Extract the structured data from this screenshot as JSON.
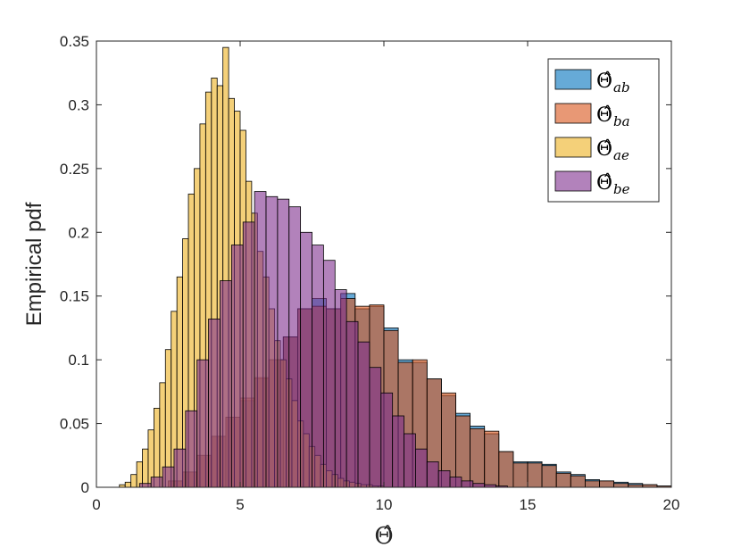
{
  "chart_data": {
    "type": "bar",
    "xlabel": "Θ̂",
    "ylabel": "Empirical pdf",
    "xlim": [
      0,
      20
    ],
    "ylim": [
      0,
      0.35
    ],
    "xticks": [
      0,
      5,
      10,
      15,
      20
    ],
    "xtick_labels": [
      "0",
      "5",
      "10",
      "15",
      "20"
    ],
    "yticks": [
      0,
      0.05,
      0.1,
      0.15,
      0.2,
      0.25,
      0.3,
      0.35
    ],
    "ytick_labels": [
      "0",
      "0.05",
      "0.1",
      "0.15",
      "0.2",
      "0.25",
      "0.3",
      "0.35"
    ],
    "grid": false,
    "legend_position": "top-right",
    "series": [
      {
        "name_base": "Θ̂",
        "name_sub": "ab",
        "color": "#0072BD",
        "binwidth": 0.5,
        "bins": [
          [
            2.5,
            0.005
          ],
          [
            3.0,
            0.012
          ],
          [
            3.5,
            0.025
          ],
          [
            4.0,
            0.04
          ],
          [
            4.5,
            0.055
          ],
          [
            5.0,
            0.068
          ],
          [
            5.5,
            0.085
          ],
          [
            6.0,
            0.1
          ],
          [
            6.5,
            0.118
          ],
          [
            7.0,
            0.14
          ],
          [
            7.5,
            0.148
          ],
          [
            8.0,
            0.14
          ],
          [
            8.5,
            0.152
          ],
          [
            9.0,
            0.14
          ],
          [
            9.5,
            0.142
          ],
          [
            10.0,
            0.125
          ],
          [
            10.5,
            0.1
          ],
          [
            11.0,
            0.098
          ],
          [
            11.5,
            0.085
          ],
          [
            12.0,
            0.072
          ],
          [
            12.5,
            0.058
          ],
          [
            13.0,
            0.048
          ],
          [
            13.5,
            0.042
          ],
          [
            14.0,
            0.028
          ],
          [
            14.5,
            0.02
          ],
          [
            15.0,
            0.02
          ],
          [
            15.5,
            0.018
          ],
          [
            16.0,
            0.012
          ],
          [
            16.5,
            0.01
          ],
          [
            17.0,
            0.006
          ],
          [
            17.5,
            0.005
          ],
          [
            18.0,
            0.004
          ],
          [
            18.5,
            0.003
          ],
          [
            19.0,
            0.002
          ],
          [
            19.5,
            0.001
          ]
        ]
      },
      {
        "name_base": "Θ̂",
        "name_sub": "ba",
        "color": "#D95319",
        "binwidth": 0.5,
        "bins": [
          [
            2.5,
            0.005
          ],
          [
            3.0,
            0.012
          ],
          [
            3.5,
            0.025
          ],
          [
            4.0,
            0.04
          ],
          [
            4.5,
            0.055
          ],
          [
            5.0,
            0.07
          ],
          [
            5.5,
            0.086
          ],
          [
            6.0,
            0.1
          ],
          [
            6.5,
            0.118
          ],
          [
            7.0,
            0.14
          ],
          [
            7.5,
            0.142
          ],
          [
            8.0,
            0.14
          ],
          [
            8.5,
            0.148
          ],
          [
            9.0,
            0.142
          ],
          [
            9.5,
            0.143
          ],
          [
            10.0,
            0.123
          ],
          [
            10.5,
            0.098
          ],
          [
            11.0,
            0.1
          ],
          [
            11.5,
            0.085
          ],
          [
            12.0,
            0.074
          ],
          [
            12.5,
            0.056
          ],
          [
            13.0,
            0.046
          ],
          [
            13.5,
            0.044
          ],
          [
            14.0,
            0.028
          ],
          [
            14.5,
            0.019
          ],
          [
            15.0,
            0.019
          ],
          [
            15.5,
            0.017
          ],
          [
            16.0,
            0.011
          ],
          [
            16.5,
            0.009
          ],
          [
            17.0,
            0.005
          ],
          [
            17.5,
            0.005
          ],
          [
            18.0,
            0.003
          ],
          [
            18.5,
            0.002
          ],
          [
            19.0,
            0.002
          ],
          [
            19.5,
            0.001
          ]
        ]
      },
      {
        "name_base": "Θ̂",
        "name_sub": "ae",
        "color": "#EDB120",
        "binwidth": 0.2,
        "bins": [
          [
            0.8,
            0.002
          ],
          [
            1.0,
            0.004
          ],
          [
            1.2,
            0.01
          ],
          [
            1.4,
            0.02
          ],
          [
            1.6,
            0.03
          ],
          [
            1.8,
            0.045
          ],
          [
            2.0,
            0.062
          ],
          [
            2.2,
            0.082
          ],
          [
            2.4,
            0.108
          ],
          [
            2.6,
            0.138
          ],
          [
            2.8,
            0.165
          ],
          [
            3.0,
            0.195
          ],
          [
            3.2,
            0.23
          ],
          [
            3.4,
            0.25
          ],
          [
            3.6,
            0.285
          ],
          [
            3.8,
            0.31
          ],
          [
            4.0,
            0.321
          ],
          [
            4.2,
            0.315
          ],
          [
            4.4,
            0.345
          ],
          [
            4.6,
            0.305
          ],
          [
            4.8,
            0.295
          ],
          [
            5.0,
            0.28
          ],
          [
            5.2,
            0.24
          ],
          [
            5.4,
            0.215
          ],
          [
            5.6,
            0.185
          ],
          [
            5.8,
            0.165
          ],
          [
            6.0,
            0.14
          ],
          [
            6.2,
            0.115
          ],
          [
            6.4,
            0.1
          ],
          [
            6.6,
            0.085
          ],
          [
            6.8,
            0.068
          ],
          [
            7.0,
            0.052
          ],
          [
            7.2,
            0.042
          ],
          [
            7.4,
            0.032
          ],
          [
            7.6,
            0.025
          ],
          [
            7.8,
            0.018
          ],
          [
            8.0,
            0.013
          ],
          [
            8.2,
            0.01
          ],
          [
            8.4,
            0.007
          ],
          [
            8.6,
            0.005
          ],
          [
            8.8,
            0.004
          ],
          [
            9.0,
            0.003
          ],
          [
            9.2,
            0.002
          ],
          [
            9.4,
            0.002
          ],
          [
            9.6,
            0.001
          ],
          [
            9.8,
            0.001
          ]
        ]
      },
      {
        "name_base": "Θ̂",
        "name_sub": "be",
        "color": "#7E2F8E",
        "binwidth": 0.4,
        "bins": [
          [
            1.5,
            0.003
          ],
          [
            1.9,
            0.008
          ],
          [
            2.3,
            0.016
          ],
          [
            2.7,
            0.03
          ],
          [
            3.1,
            0.06
          ],
          [
            3.5,
            0.1
          ],
          [
            3.9,
            0.132
          ],
          [
            4.3,
            0.162
          ],
          [
            4.7,
            0.19
          ],
          [
            5.1,
            0.208
          ],
          [
            5.5,
            0.232
          ],
          [
            5.9,
            0.228
          ],
          [
            6.3,
            0.226
          ],
          [
            6.7,
            0.22
          ],
          [
            7.1,
            0.2
          ],
          [
            7.5,
            0.19
          ],
          [
            7.9,
            0.178
          ],
          [
            8.3,
            0.155
          ],
          [
            8.7,
            0.13
          ],
          [
            9.1,
            0.114
          ],
          [
            9.5,
            0.094
          ],
          [
            9.9,
            0.074
          ],
          [
            10.3,
            0.056
          ],
          [
            10.7,
            0.042
          ],
          [
            11.1,
            0.03
          ],
          [
            11.5,
            0.02
          ],
          [
            11.9,
            0.013
          ],
          [
            12.3,
            0.008
          ],
          [
            12.7,
            0.005
          ],
          [
            13.1,
            0.003
          ],
          [
            13.5,
            0.002
          ],
          [
            13.9,
            0.001
          ]
        ]
      }
    ]
  }
}
